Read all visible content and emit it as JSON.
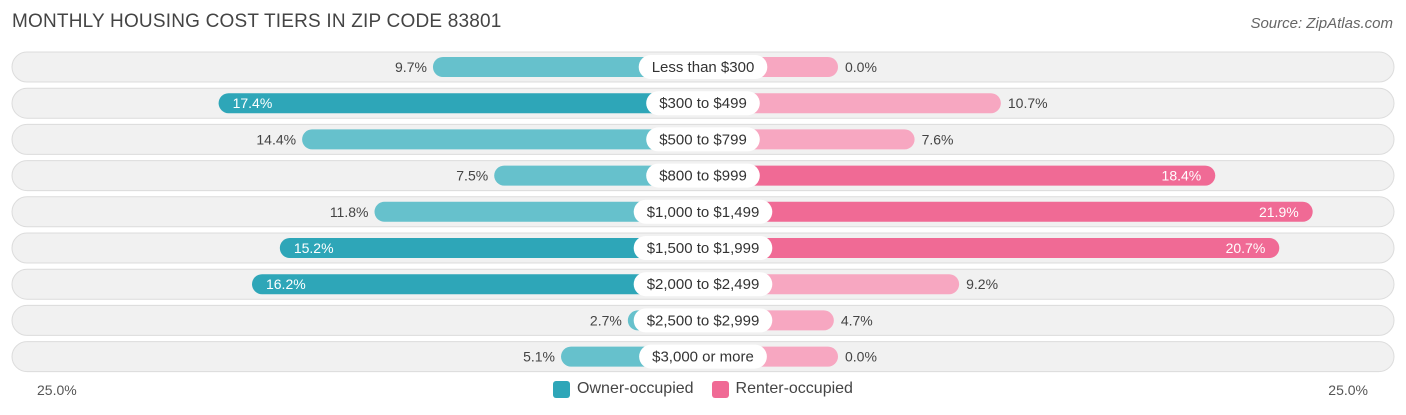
{
  "title": "MONTHLY HOUSING COST TIERS IN ZIP CODE 83801",
  "source": "Source: ZipAtlas.com",
  "colors": {
    "owner_light": "#66c1cc",
    "owner_dark": "#2ea6b8",
    "renter_light": "#f7a7c1",
    "renter_dark": "#f06a95"
  },
  "chart_data": {
    "type": "bar",
    "orientation": "horizontal-diverging",
    "categories": [
      "Less than $300",
      "$300 to $499",
      "$500 to $799",
      "$800 to $999",
      "$1,000 to $1,499",
      "$1,500 to $1,999",
      "$2,000 to $2,499",
      "$2,500 to $2,999",
      "$3,000 or more"
    ],
    "series": [
      {
        "name": "Owner-occupied",
        "values": [
          9.7,
          17.4,
          14.4,
          7.5,
          11.8,
          15.2,
          16.2,
          2.7,
          5.1
        ],
        "labels": [
          "9.7%",
          "17.4%",
          "14.4%",
          "7.5%",
          "11.8%",
          "15.2%",
          "16.2%",
          "2.7%",
          "5.1%"
        ]
      },
      {
        "name": "Renter-occupied",
        "values": [
          0.0,
          10.7,
          7.6,
          18.4,
          21.9,
          20.7,
          9.2,
          4.7,
          0.0
        ],
        "labels": [
          "0.0%",
          "10.7%",
          "7.6%",
          "18.4%",
          "21.9%",
          "20.7%",
          "9.2%",
          "4.7%",
          "0.0%"
        ]
      }
    ],
    "xlim": [
      -25,
      25
    ],
    "axis_left_label": "25.0%",
    "axis_right_label": "25.0%",
    "legend_position": "bottom-center"
  }
}
